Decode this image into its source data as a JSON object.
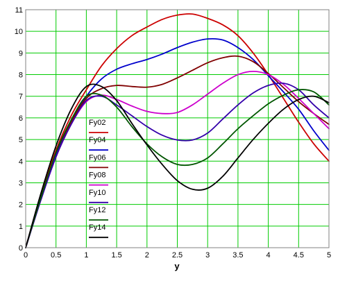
{
  "chart_data": {
    "type": "line",
    "xlabel": "y",
    "ylabel": "",
    "xlim": [
      0,
      5
    ],
    "ylim": [
      0,
      11
    ],
    "x_ticks": [
      0,
      0.5,
      1,
      1.5,
      2,
      2.5,
      3,
      3.5,
      4,
      4.5,
      5
    ],
    "x_tick_labels": [
      "0",
      "0.5",
      "1",
      "1.5",
      "2",
      "2.5",
      "3",
      "3.5",
      "4",
      "4.5",
      "5"
    ],
    "y_ticks": [
      0,
      1,
      2,
      3,
      4,
      5,
      6,
      7,
      8,
      9,
      10,
      11
    ],
    "y_tick_labels": [
      "0",
      "1",
      "2",
      "3",
      "4",
      "5",
      "6",
      "7",
      "8",
      "9",
      "10",
      "11"
    ],
    "grid": true,
    "grid_color": "#00cc00",
    "legend_position": "left-center",
    "x": [
      0,
      0.25,
      0.5,
      0.75,
      1,
      1.25,
      1.5,
      1.75,
      2,
      2.25,
      2.5,
      2.75,
      3,
      3.25,
      3.5,
      3.75,
      4,
      4.25,
      4.5,
      4.75,
      5
    ],
    "series": [
      {
        "name": "Fy02",
        "color": "#cc0000",
        "values": [
          0,
          2.4,
          4.5,
          6.1,
          7.3,
          8.4,
          9.2,
          9.8,
          10.2,
          10.55,
          10.75,
          10.8,
          10.6,
          10.3,
          9.8,
          9.0,
          8.0,
          6.9,
          5.8,
          4.8,
          4.0
        ]
      },
      {
        "name": "Fy04",
        "color": "#0000cc",
        "values": [
          0,
          2.3,
          4.3,
          5.9,
          7.0,
          7.8,
          8.25,
          8.5,
          8.7,
          8.95,
          9.25,
          9.5,
          9.65,
          9.6,
          9.25,
          8.7,
          7.95,
          7.2,
          6.4,
          5.4,
          4.5
        ]
      },
      {
        "name": "Fy06",
        "color": "#800000",
        "values": [
          0,
          2.25,
          4.2,
          5.8,
          6.9,
          7.35,
          7.5,
          7.45,
          7.42,
          7.55,
          7.85,
          8.2,
          8.55,
          8.78,
          8.85,
          8.6,
          8.05,
          7.4,
          6.75,
          6.2,
          5.7
        ]
      },
      {
        "name": "Fy08",
        "color": "#cc00cc",
        "values": [
          0,
          2.2,
          4.2,
          5.7,
          6.75,
          7.05,
          6.85,
          6.55,
          6.3,
          6.2,
          6.25,
          6.6,
          7.1,
          7.6,
          8.0,
          8.15,
          8.0,
          7.55,
          6.9,
          6.2,
          5.5
        ]
      },
      {
        "name": "Fy10",
        "color": "#3300aa",
        "values": [
          0,
          2.2,
          4.2,
          5.7,
          6.8,
          7.0,
          6.6,
          6.1,
          5.6,
          5.2,
          4.98,
          4.98,
          5.3,
          5.95,
          6.6,
          7.15,
          7.5,
          7.6,
          7.3,
          6.6,
          6.0
        ]
      },
      {
        "name": "Fy12",
        "color": "#005500",
        "values": [
          0,
          2.3,
          4.4,
          5.9,
          7.0,
          7.05,
          6.5,
          5.6,
          4.8,
          4.2,
          3.85,
          3.85,
          4.15,
          4.8,
          5.5,
          6.1,
          6.65,
          7.05,
          7.3,
          7.2,
          6.6
        ]
      },
      {
        "name": "Fy14",
        "color": "#000000",
        "values": [
          0,
          2.5,
          4.7,
          6.4,
          7.45,
          7.45,
          6.8,
          5.75,
          4.75,
          3.85,
          3.1,
          2.7,
          2.75,
          3.3,
          4.15,
          5.0,
          5.75,
          6.4,
          6.85,
          7.0,
          6.7
        ]
      }
    ]
  }
}
